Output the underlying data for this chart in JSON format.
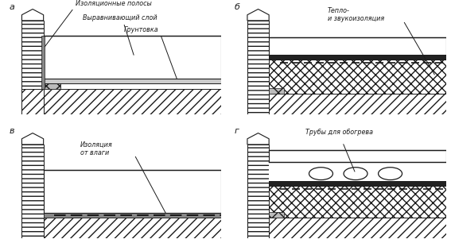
{
  "fig_width": 5.67,
  "fig_height": 3.06,
  "dpi": 100,
  "bg_color": "#ffffff",
  "lc": "#1a1a1a",
  "labels": [
    "а",
    "б",
    "в",
    "г"
  ],
  "texts": {
    "a1": "Изоляционные полосы",
    "a2": "Выравнивающий слой",
    "a3": "Грунтовка",
    "b1": "Тепло-\nи звукоизоляция",
    "c1": "Изоляция\nот влаги",
    "d1": "Трубы для обогрева"
  }
}
